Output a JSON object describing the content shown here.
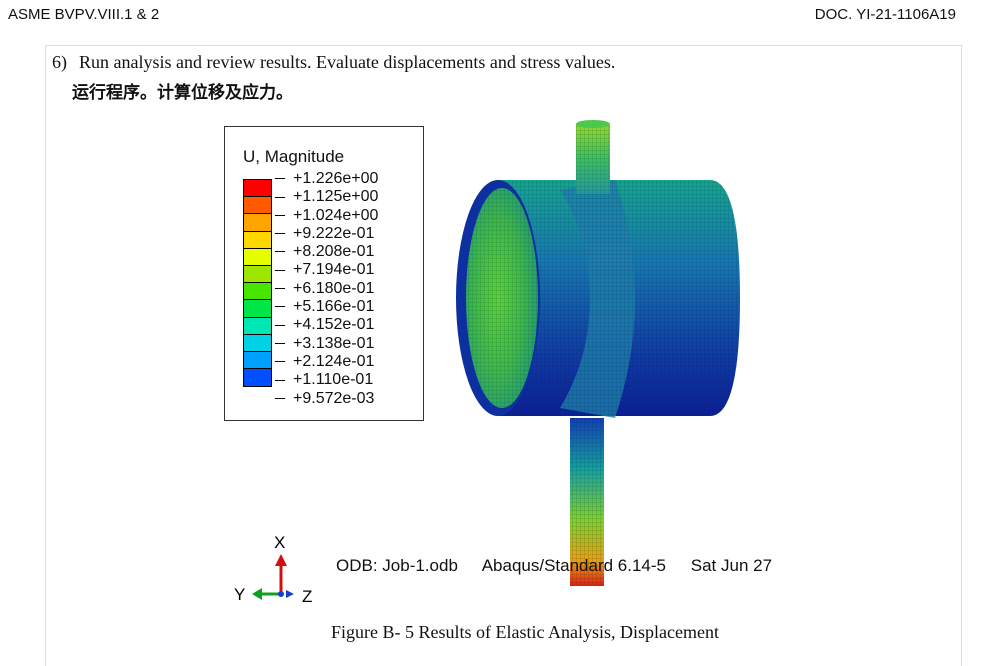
{
  "header": {
    "left": "ASME BVPV.VIII.1 & 2",
    "right": "DOC. YI-21-1106A19"
  },
  "step": {
    "number": "6)",
    "text_en": "Run analysis and review results. Evaluate displacements and stress values.",
    "text_zh": "运行程序。计算位移及应力。"
  },
  "legend": {
    "title": "U, Magnitude",
    "values": [
      "+1.226e+00",
      "+1.125e+00",
      "+1.024e+00",
      "+9.222e-01",
      "+8.208e-01",
      "+7.194e-01",
      "+6.180e-01",
      "+5.166e-01",
      "+4.152e-01",
      "+3.138e-01",
      "+2.124e-01",
      "+1.110e-01",
      "+9.572e-03"
    ],
    "colors": [
      "#ff0000",
      "#ff5a00",
      "#ffa500",
      "#ffd700",
      "#e6ff00",
      "#9ee600",
      "#46e600",
      "#00e646",
      "#00e6b4",
      "#00d2e6",
      "#00a0ff",
      "#0050ff",
      "#0000f0"
    ]
  },
  "triad": {
    "x_label": "X",
    "y_label": "Y",
    "z_label": "Z"
  },
  "odb_info": {
    "odb": "ODB: Job-1.odb",
    "solver": "Abaqus/Standard 6.14-5",
    "date": "Sat Jun 27"
  },
  "caption": "Figure B- 5 Results of Elastic Analysis, Displacement"
}
